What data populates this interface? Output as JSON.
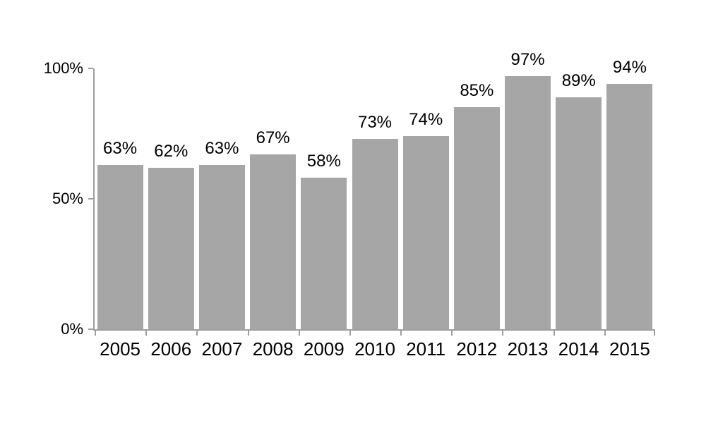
{
  "chart_data": {
    "type": "bar",
    "title": "",
    "xlabel": "",
    "ylabel": "",
    "categories": [
      "2005",
      "2006",
      "2007",
      "2008",
      "2009",
      "2010",
      "2011",
      "2012",
      "2013",
      "2014",
      "2015"
    ],
    "values": [
      63,
      62,
      63,
      67,
      58,
      73,
      74,
      85,
      97,
      89,
      94
    ],
    "labels": [
      "63%",
      "62%",
      "63%",
      "67%",
      "58%",
      "73%",
      "74%",
      "85%",
      "97%",
      "89%",
      "94%"
    ],
    "ylim": [
      0,
      100
    ],
    "y_ticks": [
      {
        "value": 0,
        "label": "0%"
      },
      {
        "value": 50,
        "label": "50%"
      },
      {
        "value": 100,
        "label": "100%"
      }
    ],
    "grid": false,
    "legend": false,
    "colors": {
      "bar": "#a6a6a6",
      "axis": "#9e9e9e",
      "text": "#000000"
    }
  }
}
